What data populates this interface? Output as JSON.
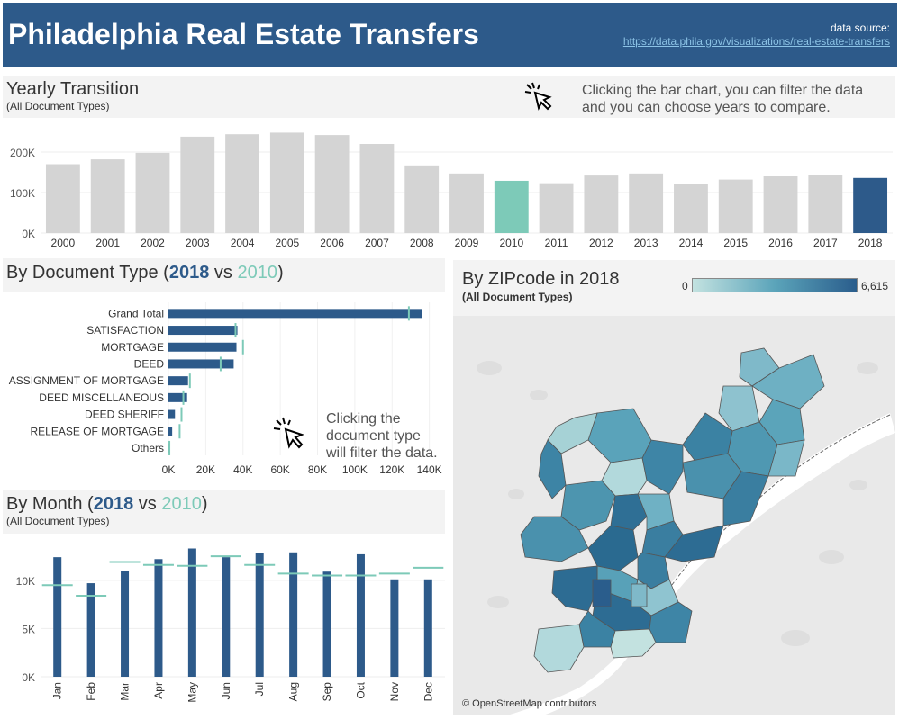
{
  "header": {
    "title": "Philadelphia Real Estate Transfers",
    "source_label": "data source:",
    "source_url": "https://data.phila.gov/visualizations/real-estate-transfers"
  },
  "colors": {
    "primary": "#2d5a8a",
    "compare": "#7dcab8",
    "neutral": "#d4d4d4",
    "header": "#2d5a8a"
  },
  "yearly": {
    "title": "Yearly Transition",
    "subtitle": "(All Document Types)",
    "hint_line1": "Clicking the bar chart, you can filter the data",
    "hint_line2": "and you can choose years to compare.",
    "icon": "cursor-click-icon"
  },
  "doctype": {
    "title_prefix": "By Document Type (",
    "year_a": "2018",
    "vs": " vs ",
    "year_b": "2010",
    "title_suffix": ")",
    "hint_line1": "Clicking the",
    "hint_line2": "document type",
    "hint_line3": "will filter the data.",
    "icon": "cursor-click-icon"
  },
  "month": {
    "title_prefix": "By Month (",
    "year_a": "2018",
    "vs": " vs ",
    "year_b": "2010",
    "title_suffix": ")",
    "subtitle": "(All Document Types)"
  },
  "map": {
    "title": "By ZIPcode in 2018",
    "subtitle": "(All Document Types)",
    "legend_min": "0",
    "legend_max": "6,615",
    "attribution": "© OpenStreetMap contributors"
  },
  "chart_data": [
    {
      "id": "yearly",
      "type": "bar",
      "categories": [
        "2000",
        "2001",
        "2002",
        "2003",
        "2004",
        "2005",
        "2006",
        "2007",
        "2008",
        "2009",
        "2010",
        "2011",
        "2012",
        "2013",
        "2014",
        "2015",
        "2016",
        "2017",
        "2018"
      ],
      "values": [
        170000,
        182000,
        198000,
        238000,
        244000,
        248000,
        242000,
        220000,
        167000,
        147000,
        129000,
        123000,
        142000,
        147000,
        122000,
        132000,
        140000,
        143000,
        136000
      ],
      "highlight": {
        "2018": "#2d5a8a",
        "2010": "#7dcab8"
      },
      "ylim": [
        0,
        260000
      ],
      "yticks": [
        0,
        100000,
        200000
      ],
      "ytick_labels": [
        "0K",
        "100K",
        "200K"
      ]
    },
    {
      "id": "doctype",
      "type": "bar",
      "orientation": "horizontal",
      "categories": [
        "Grand Total",
        "SATISFACTION",
        "MORTGAGE",
        "DEED",
        "ASSIGNMENT OF MORTGAGE",
        "DEED MISCELLANEOUS",
        "DEED SHERIFF",
        "RELEASE OF MORTGAGE",
        "Others"
      ],
      "series": [
        {
          "name": "2018",
          "values": [
            136000,
            37000,
            36500,
            35000,
            10500,
            10000,
            3500,
            2000,
            300
          ]
        },
        {
          "name": "2010",
          "values": [
            129000,
            36000,
            40000,
            28000,
            11500,
            8000,
            7000,
            6000,
            500
          ]
        }
      ],
      "xlim": [
        0,
        145000
      ],
      "xticks": [
        0,
        20000,
        40000,
        60000,
        80000,
        100000,
        120000,
        140000
      ],
      "xtick_labels": [
        "0K",
        "20K",
        "40K",
        "60K",
        "80K",
        "100K",
        "120K",
        "140K"
      ]
    },
    {
      "id": "month",
      "type": "bar",
      "categories": [
        "Jan",
        "Feb",
        "Mar",
        "Apr",
        "May",
        "Jun",
        "Jul",
        "Aug",
        "Sep",
        "Oct",
        "Nov",
        "Dec"
      ],
      "series": [
        {
          "name": "2018",
          "values": [
            12400,
            9700,
            11000,
            12200,
            13300,
            12400,
            12800,
            12900,
            10900,
            12700,
            10100,
            10100
          ]
        },
        {
          "name": "2010",
          "values": [
            9500,
            8400,
            11900,
            11600,
            11500,
            12500,
            11600,
            10700,
            10500,
            10500,
            10700,
            11300
          ]
        }
      ],
      "ylim": [
        0,
        14000
      ],
      "yticks": [
        0,
        5000,
        10000
      ],
      "ytick_labels": [
        "0K",
        "5K",
        "10K"
      ]
    }
  ]
}
